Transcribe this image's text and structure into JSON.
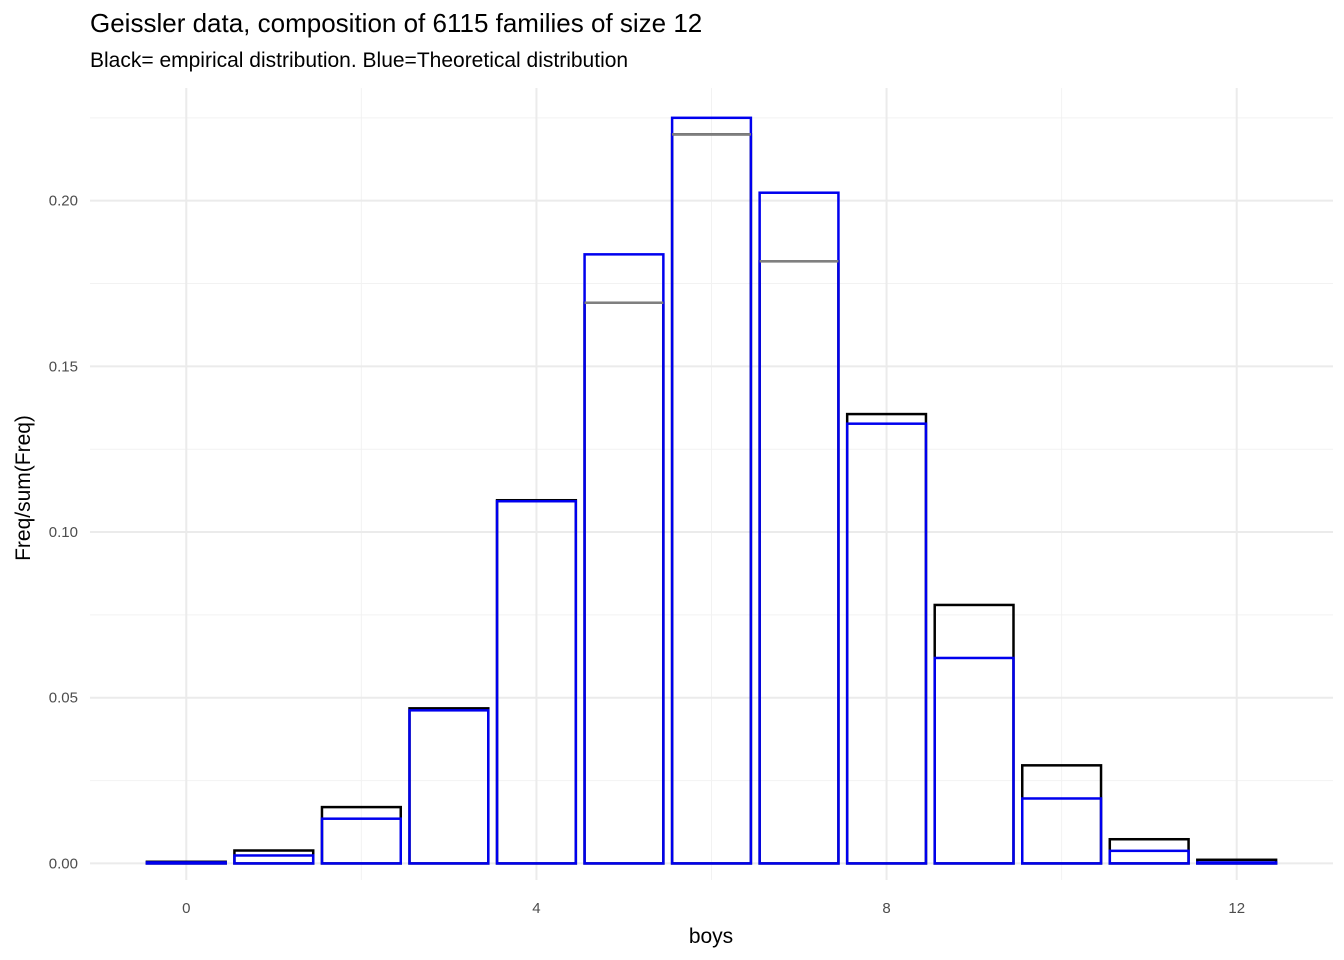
{
  "chart_data": {
    "type": "bar",
    "title": "Geissler data, composition of 6115 families of size 12",
    "subtitle": "Black= empirical distribution. Blue=Theoretical distribution",
    "xlabel": "boys",
    "ylabel": "Freq/sum(Freq)",
    "categories": [
      0,
      1,
      2,
      3,
      4,
      5,
      6,
      7,
      8,
      9,
      10,
      11,
      12
    ],
    "x_ticks": [
      "0",
      "4",
      "8",
      "12"
    ],
    "x_tick_values": [
      0,
      4,
      8,
      12
    ],
    "y_ticks": [
      "0.00",
      "0.05",
      "0.10",
      "0.15",
      "0.20"
    ],
    "y_tick_values": [
      0,
      0.05,
      0.1,
      0.15,
      0.2
    ],
    "xlim": [
      -1.1,
      13.1
    ],
    "ylim": [
      -0.005,
      0.234
    ],
    "grid": true,
    "series": [
      {
        "color": "#000000",
        "values": [
          0.0005,
          0.0039,
          0.017,
          0.0468,
          0.1096,
          0.1692,
          0.22,
          0.1817,
          0.1356,
          0.078,
          0.0296,
          0.0073,
          0.0011
        ]
      },
      {
        "color": "#0000ee",
        "values": [
          0.0003,
          0.0024,
          0.0135,
          0.0462,
          0.1093,
          0.1838,
          0.225,
          0.2024,
          0.1327,
          0.062,
          0.0196,
          0.0038,
          0.0003
        ]
      }
    ]
  }
}
